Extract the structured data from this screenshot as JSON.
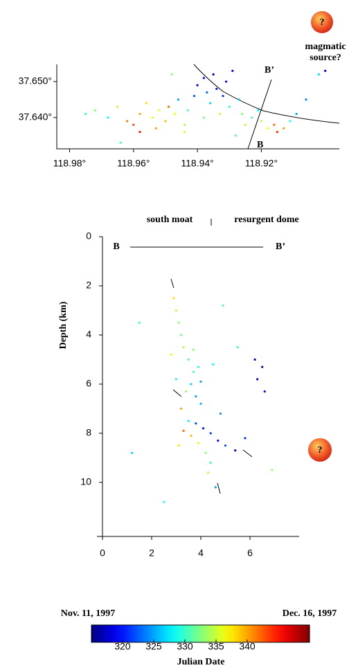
{
  "chart_data": [
    {
      "type": "scatter",
      "annotations": {
        "source_label": [
          "magmatic",
          "source?"
        ],
        "question": "?",
        "b": "B",
        "b_prime": "B’"
      },
      "xlim": [
        118.984,
        118.8956
      ],
      "ylim": [
        37.6313,
        37.6548
      ],
      "xticks": [
        {
          "value": 118.98,
          "label": "118.98°"
        },
        {
          "value": 118.96,
          "label": "118.96°"
        },
        {
          "value": 118.94,
          "label": "118.94°"
        },
        {
          "value": 118.92,
          "label": "118.92°"
        }
      ],
      "yticks": [
        {
          "value": 37.64,
          "label": "37.640°"
        },
        {
          "value": 37.65,
          "label": "37.650°"
        }
      ],
      "color_by": "colorbar",
      "x": [
        118.975,
        118.972,
        118.968,
        118.965,
        118.962,
        118.96,
        118.958,
        118.956,
        118.954,
        118.952,
        118.95,
        118.949,
        118.947,
        118.946,
        118.944,
        118.943,
        118.941,
        118.94,
        118.938,
        118.937,
        118.936,
        118.935,
        118.934,
        118.932,
        118.931,
        118.93,
        118.929,
        118.927,
        118.926,
        118.925,
        118.923,
        118.921,
        118.92,
        118.918,
        118.916,
        118.915,
        118.913,
        118.911,
        118.909,
        118.906,
        118.902,
        118.9,
        118.958,
        118.953,
        118.944,
        118.938,
        118.933,
        118.948,
        118.964,
        118.928
      ],
      "y": [
        37.641,
        37.642,
        37.64,
        37.643,
        37.639,
        37.638,
        37.641,
        37.644,
        37.64,
        37.642,
        37.639,
        37.643,
        37.641,
        37.645,
        37.638,
        37.642,
        37.646,
        37.649,
        37.651,
        37.647,
        37.644,
        37.652,
        37.648,
        37.646,
        37.65,
        37.643,
        37.653,
        37.645,
        37.641,
        37.638,
        37.64,
        37.642,
        37.639,
        37.637,
        37.638,
        37.636,
        37.637,
        37.639,
        37.641,
        37.645,
        37.652,
        37.653,
        37.636,
        37.637,
        37.636,
        37.64,
        37.641,
        37.652,
        37.633,
        37.635
      ],
      "c": [
        330,
        333,
        328,
        335,
        341,
        343,
        340,
        338,
        337,
        336,
        339,
        342,
        337,
        325,
        334,
        331,
        322,
        318,
        320,
        323,
        327,
        317,
        319,
        321,
        318,
        329,
        319,
        326,
        333,
        335,
        331,
        328,
        334,
        337,
        342,
        344,
        340,
        329,
        325,
        324,
        327,
        318,
        345,
        340,
        336,
        332,
        335,
        333,
        330,
        331
      ]
    },
    {
      "type": "scatter",
      "ylabel": "Depth (km)",
      "annotations": {
        "south_moat": "south moat",
        "resurgent_dome": "resurgent dome",
        "b": "B",
        "b_prime": "B’",
        "question": "?"
      },
      "xlim": [
        0,
        8
      ],
      "ylim": [
        12.2,
        0
      ],
      "xticks": [
        0,
        2,
        4,
        6
      ],
      "yticks": [
        0,
        2,
        4,
        6,
        8,
        10
      ],
      "color_by": "colorbar",
      "x": [
        2.9,
        3.0,
        3.1,
        3.2,
        3.3,
        3.5,
        3.7,
        3.9,
        3.6,
        3.8,
        3.4,
        3.2,
        3.5,
        3.8,
        4.1,
        4.4,
        4.7,
        5.0,
        5.4,
        3.6,
        3.9,
        4.2,
        4.4,
        4.3,
        3.3,
        4.0,
        4.5,
        5.5,
        6.2,
        6.5,
        6.3,
        6.6,
        3.0,
        2.8,
        4.9,
        1.2,
        1.5,
        6.9,
        2.5,
        4.6,
        5.8,
        3.7,
        4.0,
        3.1,
        4.8
      ],
      "y": [
        2.5,
        3.0,
        3.5,
        4.0,
        4.5,
        5.0,
        5.5,
        5.3,
        6.0,
        6.5,
        6.3,
        7.0,
        7.5,
        7.6,
        7.8,
        8.0,
        8.3,
        8.5,
        8.7,
        8.1,
        8.4,
        8.8,
        9.2,
        9.6,
        7.9,
        6.8,
        5.2,
        4.5,
        5.0,
        5.3,
        5.8,
        6.3,
        5.8,
        4.8,
        2.8,
        8.8,
        3.5,
        9.5,
        10.8,
        10.2,
        8.2,
        4.6,
        5.9,
        8.5,
        7.2
      ],
      "c": [
        338,
        335,
        333,
        332,
        334,
        331,
        330,
        329,
        327,
        325,
        334,
        340,
        328,
        322,
        320,
        321,
        319,
        322,
        318,
        339,
        336,
        333,
        330,
        335,
        342,
        326,
        328,
        330,
        317,
        316,
        318,
        320,
        329,
        336,
        331,
        327,
        330,
        333,
        329,
        325,
        321,
        333,
        325,
        338,
        324
      ]
    },
    {
      "type": "colorbar",
      "colormap": "jet",
      "clim": [
        315,
        350
      ],
      "ticks": [
        320,
        325,
        330,
        335,
        340
      ],
      "start_label": "Nov. 11, 1997",
      "end_label": "Dec. 16, 1997",
      "label": "Julian Date"
    }
  ]
}
